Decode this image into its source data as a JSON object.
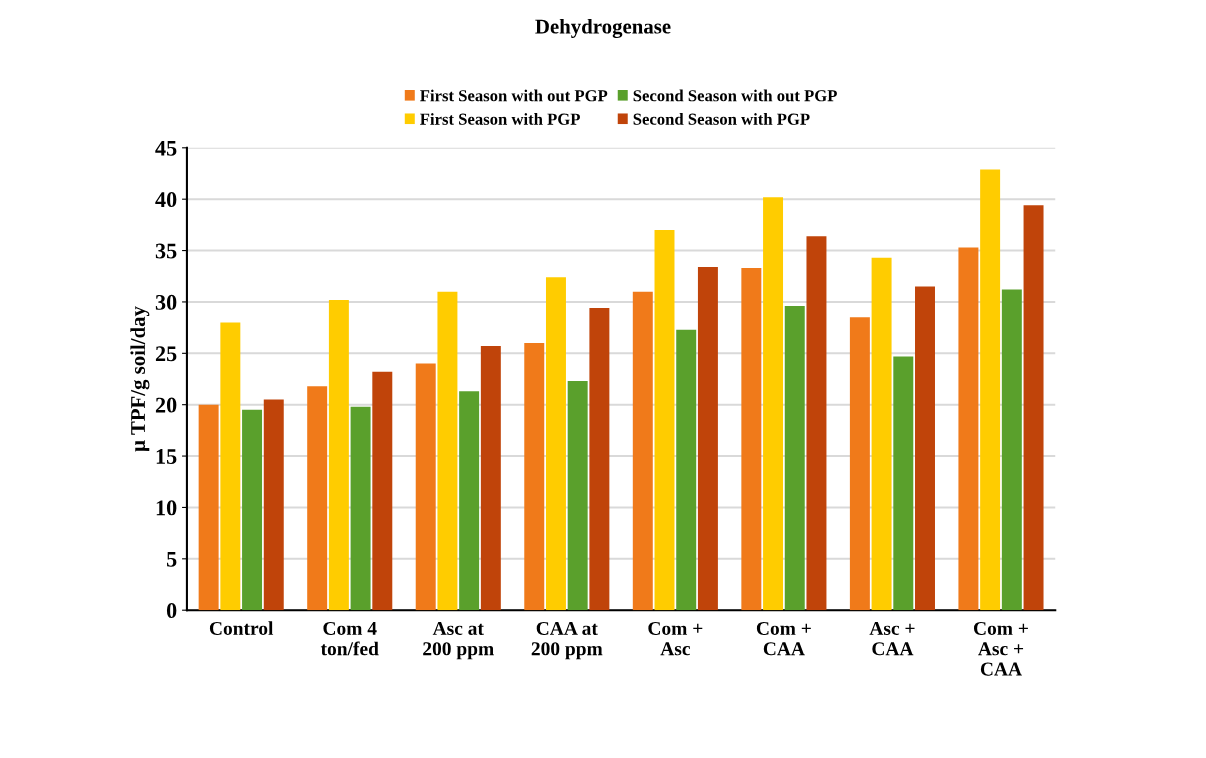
{
  "chart_data": {
    "type": "bar",
    "title": "Dehydrogenase",
    "ylabel": "µ TPF/g soil/day",
    "categories": [
      "Control",
      "Com 4\nton/fed",
      "Asc at\n200 ppm",
      "CAA at\n200 ppm",
      "Com +\nAsc",
      "Com +\nCAA",
      "Asc +\nCAA",
      "Com +\nAsc +\nCAA"
    ],
    "series": [
      {
        "name": "First Season with out PGP",
        "color": "#f07a1a",
        "values": [
          20,
          21.8,
          24,
          26,
          31,
          33.3,
          28.5,
          35.3
        ]
      },
      {
        "name": "First Season with PGP",
        "color": "#ffcc00",
        "values": [
          28,
          30.2,
          31,
          32.4,
          37,
          40.2,
          34.3,
          42.9
        ]
      },
      {
        "name": "Second Season with out PGP",
        "color": "#5aa02c",
        "values": [
          19.5,
          19.8,
          21.3,
          22.3,
          27.3,
          29.6,
          24.7,
          31.2
        ]
      },
      {
        "name": "Second Season with PGP",
        "color": "#c0440a",
        "values": [
          20.5,
          23.2,
          25.7,
          29.4,
          33.4,
          36.4,
          31.5,
          39.4
        ]
      }
    ],
    "ylim": [
      0,
      45
    ],
    "yticks": [
      0,
      5,
      10,
      15,
      20,
      25,
      30,
      35,
      40,
      45
    ],
    "grid": "y",
    "legend": "top"
  }
}
